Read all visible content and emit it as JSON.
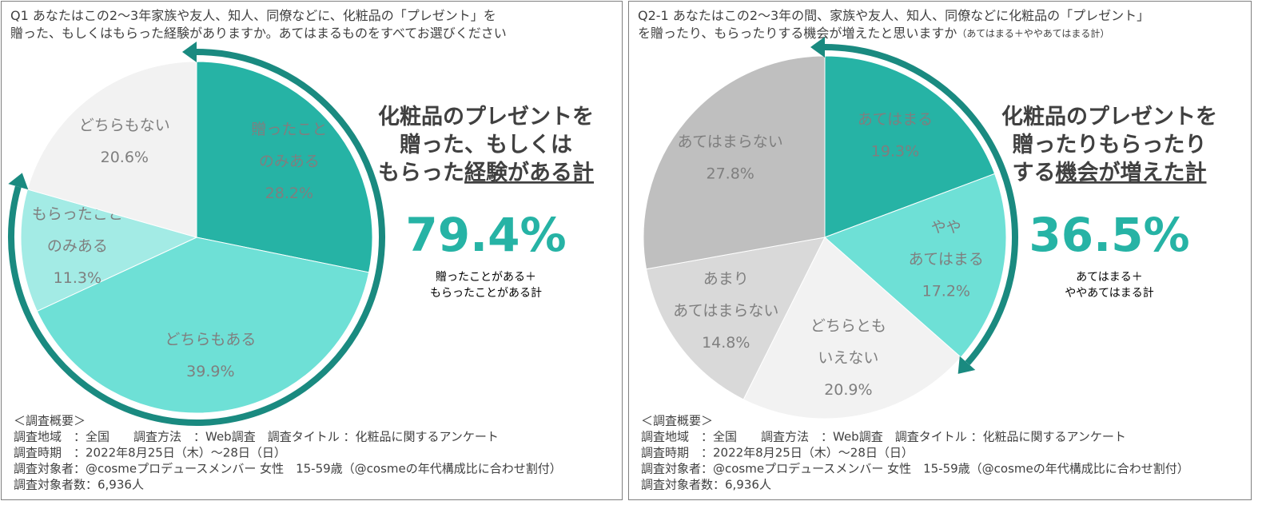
{
  "chart_data": [
    {
      "type": "pie",
      "title": [
        [
          {
            "text": "Q1 あなたはこの2～3年家族や友人、知人、同僚などに、化粧品の「プレゼント」を"
          }
        ],
        [
          {
            "text": "贈った、もしくはもらった経験がありますか。あてはまるものをすべてお選びください"
          }
        ]
      ],
      "categories": [
        [
          "贈ったこと",
          "のみある"
        ],
        [
          "どちらもある"
        ],
        [
          "もらったこと",
          "のみある"
        ],
        [
          "どちらもない"
        ]
      ],
      "values": [
        28.2,
        39.9,
        11.3,
        20.6
      ],
      "value_labels": [
        "28.2%",
        "39.9%",
        "11.3%",
        "20.6%"
      ],
      "colors": [
        "#26b3a5",
        "#6ee0d6",
        "#a3ebe5",
        "#f2f2f2"
      ],
      "headline": [
        [
          {
            "text": "化粧品のプレゼントを"
          }
        ],
        [
          {
            "text": "贈った、もしくは"
          }
        ],
        [
          {
            "text": "もらった"
          },
          {
            "text": "経験がある計",
            "underline": true
          }
        ]
      ],
      "total": 79.4,
      "total_label": "79.4%",
      "total_note": [
        "贈ったことがある＋",
        "もらったことがある計"
      ],
      "notes": [
        "＜調査概要＞",
        "調査地域　：全国　　調査方法　：Web調査　調査タイトル ：化粧品に関するアンケート",
        "調査時期　：2022年8月25日（木）～28日（日）",
        "調査対象者：@cosmeプロデュースメンバー 女性　15-59歳（@cosmeの年代構成比に合わせ割付）",
        "調査対象者数：6,936人"
      ]
    },
    {
      "type": "pie",
      "title": [
        [
          {
            "text": "Q2-1 あなたはこの2～3年の間、家族や友人、知人、同僚などに化粧品の「プレゼント」"
          }
        ],
        [
          {
            "text": "を贈ったり、もらったりする機会が増えたと思いますか"
          },
          {
            "text": "（あてはまる＋ややあてはまる計）",
            "small": true
          }
        ]
      ],
      "categories": [
        [
          "あてはまる"
        ],
        [
          "やや",
          "あてはまる"
        ],
        [
          "どちらとも",
          "いえない"
        ],
        [
          "あまり",
          "あてはまらない"
        ],
        [
          "あてはまらない"
        ]
      ],
      "values": [
        19.3,
        17.2,
        20.9,
        14.8,
        27.8
      ],
      "value_labels": [
        "19.3%",
        "17.2%",
        "20.9%",
        "14.8%",
        "27.8%"
      ],
      "colors": [
        "#26b3a5",
        "#6ee0d6",
        "#f2f2f2",
        "#d9d9d9",
        "#bfbfbf"
      ],
      "headline": [
        [
          {
            "text": "化粧品のプレゼントを"
          }
        ],
        [
          {
            "text": "贈ったりもらったり"
          }
        ],
        [
          {
            "text": "する"
          },
          {
            "text": "機会が増えた計",
            "underline": true
          }
        ]
      ],
      "total": 36.5,
      "total_label": "36.5%",
      "total_note": [
        "あてはまる＋",
        "ややあてはまる計"
      ],
      "notes": [
        "＜調査概要＞",
        "調査地域　：全国　　調査方法　：Web調査　調査タイトル ：化粧品に関するアンケート",
        "調査時期　：2022年8月25日（木）～28日（日）",
        "調査対象者：@cosmeプロデュースメンバー 女性　15-59歳（@cosmeの年代構成比に合わせ割付）",
        "調査対象者数：6,936人"
      ]
    }
  ]
}
